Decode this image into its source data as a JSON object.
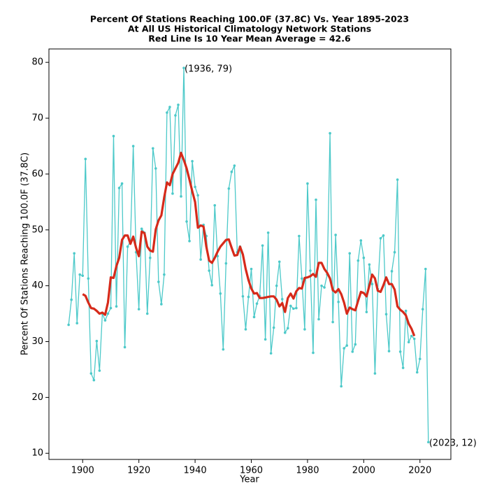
{
  "chart_data": {
    "type": "line",
    "title": [
      "Percent Of Stations Reaching 100.0F (37.8C) Vs. Year 1895-2023",
      "At All US Historical Climatology Network Stations",
      "Red Line Is 10 Year Mean  Average = 42.6"
    ],
    "x_label": "Year",
    "y_label": "Percent Of Stations Reaching 100.0F (37.8C)",
    "xlim": [
      1888,
      2031
    ],
    "ylim": [
      8.9,
      82.4
    ],
    "xticks": [
      1900,
      1920,
      1940,
      1960,
      1980,
      2000,
      2020
    ],
    "yticks": [
      10,
      20,
      30,
      40,
      50,
      60,
      70,
      80
    ],
    "grid": false,
    "x": [
      1895,
      1896,
      1897,
      1898,
      1899,
      1900,
      1901,
      1902,
      1903,
      1904,
      1905,
      1906,
      1907,
      1908,
      1909,
      1910,
      1911,
      1912,
      1913,
      1914,
      1915,
      1916,
      1917,
      1918,
      1919,
      1920,
      1921,
      1922,
      1923,
      1924,
      1925,
      1926,
      1927,
      1928,
      1929,
      1930,
      1931,
      1932,
      1933,
      1934,
      1935,
      1936,
      1937,
      1938,
      1939,
      1940,
      1941,
      1942,
      1943,
      1944,
      1945,
      1946,
      1947,
      1948,
      1949,
      1950,
      1951,
      1952,
      1953,
      1954,
      1955,
      1956,
      1957,
      1958,
      1959,
      1960,
      1961,
      1962,
      1963,
      1964,
      1965,
      1966,
      1967,
      1968,
      1969,
      1970,
      1971,
      1972,
      1973,
      1974,
      1975,
      1976,
      1977,
      1978,
      1979,
      1980,
      1981,
      1982,
      1983,
      1984,
      1985,
      1986,
      1987,
      1988,
      1989,
      1990,
      1991,
      1992,
      1993,
      1994,
      1995,
      1996,
      1997,
      1998,
      1999,
      2000,
      2001,
      2002,
      2003,
      2004,
      2005,
      2006,
      2007,
      2008,
      2009,
      2010,
      2011,
      2012,
      2013,
      2014,
      2015,
      2016,
      2017,
      2018,
      2019,
      2020,
      2021,
      2022,
      2023
    ],
    "series": [
      {
        "color": "#4cc9c9",
        "markers": true,
        "width": 1.3,
        "values": [
          33,
          37.5,
          45.8,
          33.3,
          42,
          41.8,
          62.7,
          41.3,
          24.3,
          23.1,
          30.1,
          24.8,
          35,
          33.8,
          35,
          36,
          66.8,
          36.3,
          57.5,
          58.3,
          29,
          47,
          48,
          65,
          46,
          35.8,
          50.2,
          49.5,
          35,
          45,
          64.6,
          61,
          40.7,
          36.7,
          42,
          71,
          72,
          56.5,
          70.5,
          72.4,
          56,
          79,
          51.5,
          48,
          62.3,
          57.7,
          56.2,
          44.7,
          50.9,
          48.9,
          42.7,
          40.1,
          54.4,
          45.3,
          38.6,
          28.6,
          44,
          57.4,
          60.4,
          61.5,
          46,
          47,
          38.1,
          32.2,
          38,
          43,
          34.4,
          36.8,
          38.2,
          47.2,
          30.4,
          49.5,
          27.9,
          32.5,
          40,
          44.3,
          37.6,
          31.6,
          32.4,
          36.4,
          35.9,
          36,
          48.9,
          41.3,
          32.2,
          58.3,
          42.7,
          28,
          55.4,
          34,
          40,
          39.7,
          42,
          67.3,
          33.5,
          49.1,
          37.1,
          22,
          28.8,
          29.3,
          45.8,
          28.2,
          29.5,
          44.5,
          48.1,
          45,
          35.3,
          43.8,
          40.3,
          24.3,
          39.4,
          48.5,
          49,
          34.9,
          28.3,
          42.6,
          46,
          59,
          28.2,
          25.3,
          35.5,
          29.9,
          31,
          30.5,
          24.5,
          26.9,
          35.8,
          43,
          12
        ]
      },
      {
        "color": "#d62a1a",
        "markers": false,
        "width": 3.2,
        "values": [
          null,
          null,
          null,
          null,
          null,
          38.5,
          38.2,
          37,
          36,
          35.9,
          35.5,
          35,
          35.2,
          34.8,
          37,
          41.5,
          41.4,
          43.5,
          45,
          48.2,
          49,
          49,
          47.5,
          48.8,
          46.8,
          45.3,
          49.7,
          49.4,
          47,
          46.3,
          46.1,
          50.1,
          51.7,
          52.6,
          55.8,
          58.5,
          58,
          60,
          61,
          62,
          63.8,
          62.5,
          61,
          59,
          56.9,
          55,
          50.4,
          50.8,
          50.6,
          47,
          44.5,
          44.1,
          45,
          46.1,
          47,
          47.6,
          48.2,
          48.3,
          46.8,
          45.4,
          45.5,
          47,
          45.6,
          43,
          41,
          39.5,
          38.6,
          38.7,
          37.8,
          37.8,
          37.9,
          38,
          38.1,
          38.1,
          37.5,
          36.3,
          36.9,
          35.3,
          37.8,
          38.6,
          37.7,
          39,
          39.6,
          39.5,
          41.4,
          41.5,
          41.7,
          42.1,
          41.6,
          44.1,
          44.1,
          43,
          42.3,
          41.3,
          39.2,
          38.8,
          39.4,
          38.5,
          37,
          35,
          36.1,
          35.8,
          35.6,
          37.3,
          38.9,
          38.7,
          38.1,
          40,
          42,
          41.3,
          39.1,
          38.9,
          40.1,
          41.5,
          40.3,
          40.3,
          39.3,
          36.3,
          35.7,
          35.3,
          34.7,
          33.2,
          32.3,
          31,
          null,
          null,
          null,
          null,
          null
        ]
      }
    ],
    "annotations": [
      {
        "text": "(1936, 79)",
        "x": 1936,
        "y": 79
      },
      {
        "text": "(2023, 12)",
        "x": 2023,
        "y": 12
      }
    ]
  }
}
